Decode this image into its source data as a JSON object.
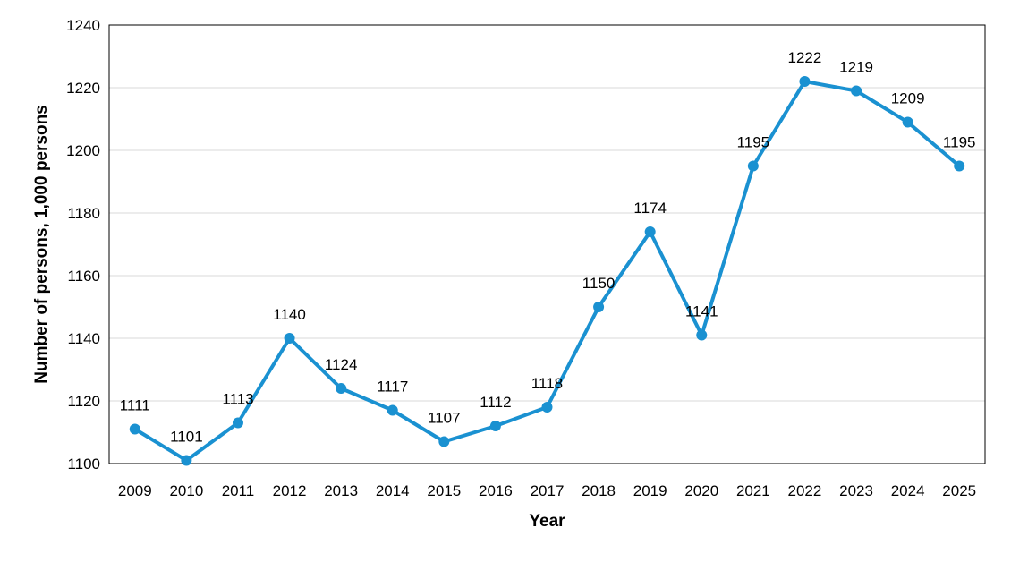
{
  "chart_data": {
    "type": "line",
    "title": "",
    "xlabel": "Year",
    "ylabel": "Number of persons, 1,000 persons",
    "ylim": [
      1100,
      1240
    ],
    "yticks": [
      1100,
      1120,
      1140,
      1160,
      1180,
      1200,
      1220,
      1240
    ],
    "grid": true,
    "legend": "none",
    "categories": [
      "2009",
      "2010",
      "2011",
      "2012",
      "2013",
      "2014",
      "2015",
      "2016",
      "2017",
      "2018",
      "2019",
      "2020",
      "2021",
      "2022",
      "2023",
      "2024",
      "2025"
    ],
    "series": [
      {
        "values": [
          1111,
          1101,
          1113,
          1140,
          1124,
          1117,
          1107,
          1112,
          1118,
          1150,
          1174,
          1141,
          1195,
          1222,
          1219,
          1209,
          1195
        ],
        "color": "#1a91d1"
      }
    ],
    "data_labels": [
      "1111",
      "1101",
      "1113",
      "1140",
      "1124",
      "1117",
      "1107",
      "1112",
      "1118",
      "1150",
      "1174",
      "1141",
      "1195",
      "1222",
      "1219",
      "1209",
      "1195"
    ]
  }
}
